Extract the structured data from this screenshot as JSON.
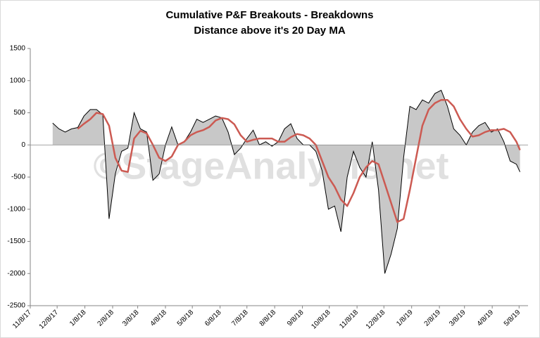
{
  "chart_data": {
    "type": "area_line",
    "title": "Cumulative P&F Breakouts - Breakdowns",
    "subtitle": "Distance above it's 20 Day MA",
    "watermark": "©StageAnalysis.net",
    "x": [
      "12/3/17",
      "12/10/17",
      "12/17/17",
      "12/24/17",
      "12/31/17",
      "1/7/18",
      "1/14/18",
      "1/21/18",
      "1/28/18",
      "2/4/18",
      "2/11/18",
      "2/18/18",
      "2/25/18",
      "3/4/18",
      "3/11/18",
      "3/18/18",
      "3/25/18",
      "4/1/18",
      "4/8/18",
      "4/15/18",
      "4/22/18",
      "4/29/18",
      "5/6/18",
      "5/13/18",
      "5/20/18",
      "5/27/18",
      "6/3/18",
      "6/10/18",
      "6/17/18",
      "6/24/18",
      "7/1/18",
      "7/8/18",
      "7/15/18",
      "7/22/18",
      "7/29/18",
      "8/5/18",
      "8/12/18",
      "8/19/18",
      "8/26/18",
      "9/2/18",
      "9/9/18",
      "9/16/18",
      "9/23/18",
      "9/30/18",
      "10/7/18",
      "10/14/18",
      "10/21/18",
      "10/28/18",
      "11/4/18",
      "11/11/18",
      "11/18/18",
      "11/25/18",
      "12/2/18",
      "12/9/18",
      "12/16/18",
      "12/23/18",
      "12/30/18",
      "1/6/19",
      "1/13/19",
      "1/20/19",
      "1/27/19",
      "2/3/19",
      "2/10/19",
      "2/17/19",
      "2/24/19",
      "3/3/19",
      "3/10/19",
      "3/17/19",
      "3/24/19",
      "3/31/19",
      "4/7/19",
      "4/14/19",
      "4/21/19",
      "4/28/19",
      "5/5/19",
      "5/9/19"
    ],
    "series": [
      {
        "color": "#000000",
        "fill": "#c8c8c8",
        "values": [
          340,
          250,
          200,
          250,
          270,
          450,
          550,
          550,
          470,
          -1150,
          -450,
          -100,
          -50,
          500,
          250,
          200,
          -550,
          -450,
          0,
          280,
          0,
          50,
          200,
          400,
          350,
          400,
          450,
          420,
          200,
          -150,
          -50,
          100,
          230,
          0,
          50,
          -20,
          50,
          250,
          330,
          100,
          0,
          0,
          -100,
          -400,
          -1000,
          -950,
          -1350,
          -500,
          -100,
          -350,
          -500,
          50,
          -700,
          -2000,
          -1700,
          -1300,
          -200,
          600,
          550,
          700,
          650,
          800,
          850,
          600,
          250,
          150,
          0,
          200,
          300,
          350,
          200,
          250,
          50,
          -250,
          -300,
          -420
        ]
      },
      {
        "color": "#cc5a52",
        "values": [
          null,
          null,
          null,
          null,
          250,
          330,
          400,
          500,
          480,
          300,
          -200,
          -400,
          -420,
          100,
          220,
          180,
          0,
          -200,
          -250,
          -180,
          0,
          50,
          150,
          200,
          230,
          280,
          380,
          420,
          400,
          320,
          150,
          50,
          80,
          100,
          100,
          100,
          50,
          50,
          120,
          170,
          150,
          100,
          0,
          -250,
          -500,
          -650,
          -850,
          -950,
          -750,
          -500,
          -350,
          -250,
          -300,
          -600,
          -900,
          -1200,
          -1150,
          -700,
          -200,
          300,
          550,
          650,
          700,
          700,
          600,
          400,
          250,
          130,
          150,
          200,
          230,
          230,
          250,
          200,
          50,
          -80
        ]
      }
    ],
    "xlim": [
      "11/8/17",
      "5/18/19"
    ],
    "xticks": [
      "11/8/17",
      "12/8/17",
      "1/8/18",
      "2/8/18",
      "3/8/18",
      "4/8/18",
      "5/8/18",
      "6/8/18",
      "7/8/18",
      "8/8/18",
      "9/8/18",
      "10/8/18",
      "11/8/18",
      "12/8/18",
      "1/8/19",
      "2/8/19",
      "3/8/19",
      "4/8/19",
      "5/8/19"
    ],
    "ylim": [
      -2500,
      1500
    ],
    "yticks": [
      -2500,
      -2000,
      -1500,
      -1000,
      -500,
      0,
      500,
      1000,
      1500
    ]
  }
}
